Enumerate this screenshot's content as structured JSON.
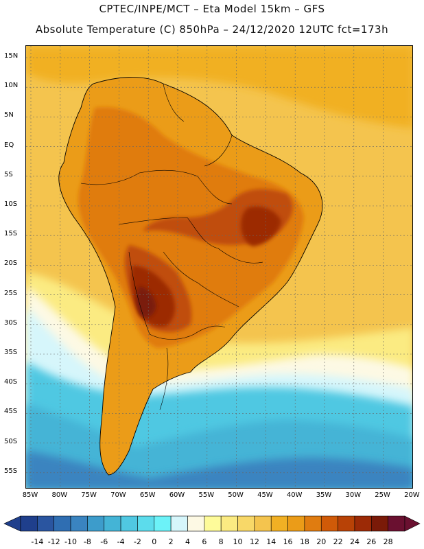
{
  "header": {
    "title_line1": "CPTEC/INPE/MCT –  Eta Model 15km – GFS",
    "title_line2": "Absolute Temperature (C) 850hPa – 24/12/2020 12UTC fct=173h"
  },
  "axes": {
    "lat_labels": [
      "15N",
      "10N",
      "5N",
      "EQ",
      "5S",
      "10S",
      "15S",
      "20S",
      "25S",
      "30S",
      "35S",
      "40S",
      "45S",
      "50S",
      "55S"
    ],
    "lon_labels": [
      "85W",
      "80W",
      "75W",
      "70W",
      "65W",
      "60W",
      "55W",
      "50W",
      "45W",
      "40W",
      "35W",
      "30W",
      "25W",
      "20W"
    ]
  },
  "legend": {
    "labels": [
      "-14",
      "-12",
      "-10",
      "-8",
      "-6",
      "-4",
      "-2",
      "0",
      "2",
      "4",
      "6",
      "8",
      "10",
      "12",
      "14",
      "16",
      "18",
      "20",
      "22",
      "24",
      "26",
      "28"
    ],
    "colors": [
      "#1f3f8c",
      "#2a55a0",
      "#2f6eb2",
      "#3a84c0",
      "#3d9ccb",
      "#44b4d6",
      "#50c8e2",
      "#5cdcec",
      "#6cf2f8",
      "#d6f6fb",
      "#fdf9e4",
      "#fefb9a",
      "#fbeb82",
      "#f8d868",
      "#f4c44e",
      "#f1b024",
      "#eb9c18",
      "#e07c10",
      "#d05a08",
      "#b84206",
      "#9c2a06",
      "#7a1a08",
      "#6a1030"
    ]
  },
  "map_regions": {
    "cold_south": "#3a84c0",
    "cool_south": "#44b4d6",
    "cyan_band": "#50c8e2",
    "pale_band": "#d6f6fb",
    "cream_band": "#fdf9e4",
    "yellow_band": "#fbeb82",
    "ocean_warm": "#f4c44e",
    "ocean_north": "#f1b024",
    "land_base": "#eb9c18",
    "land_hot": "#e07c10",
    "land_hotter": "#c04e08",
    "land_core": "#9c2a06",
    "land_peak": "#7a1a08"
  }
}
